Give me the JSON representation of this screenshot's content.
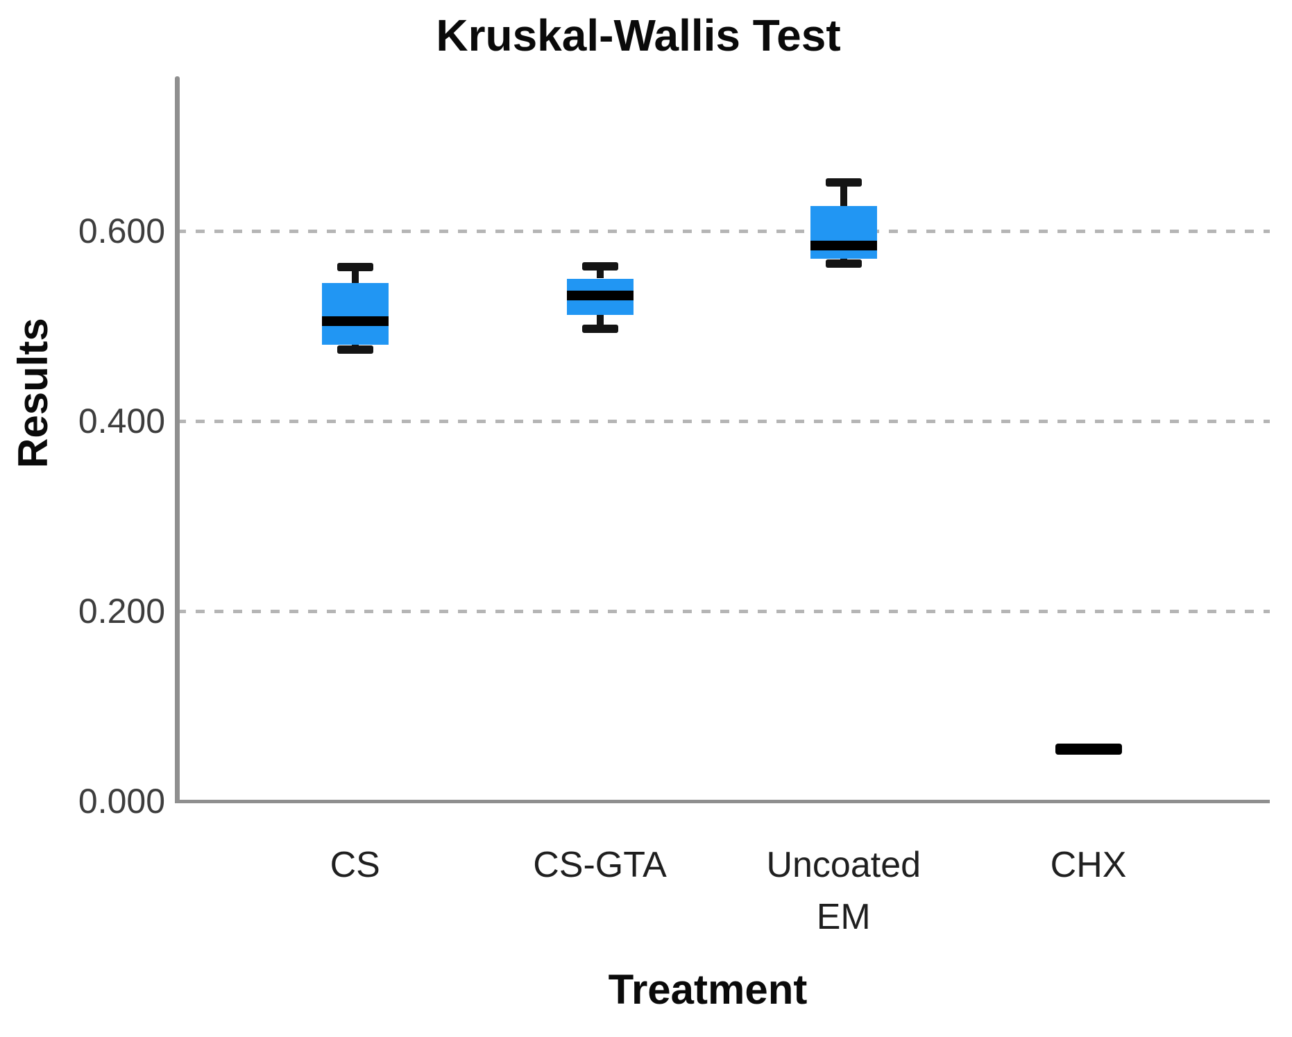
{
  "title": "Kruskal-Wallis Test",
  "chart_data": {
    "type": "boxplot",
    "title": "Kruskal-Wallis Test",
    "xlabel": "Treatment",
    "ylabel": "Results",
    "categories": [
      "CS",
      "CS-GTA",
      "Uncoated EM",
      "CHX"
    ],
    "ylim": [
      0,
      0.76
    ],
    "yticks": [
      0.0,
      0.2,
      0.4,
      0.6
    ],
    "ytick_labels": [
      "0.000",
      "0.200",
      "0.400",
      "0.600"
    ],
    "grid": "horizontal dashed gridlines at 0.200, 0.400, 0.600; none at 0.000 (baseline axis)",
    "legend": "none",
    "series": [
      {
        "name": "CS",
        "min": 0.475,
        "q1": 0.48,
        "median": 0.505,
        "q3": 0.545,
        "max": 0.562
      },
      {
        "name": "CS-GTA",
        "min": 0.497,
        "q1": 0.512,
        "median": 0.532,
        "q3": 0.55,
        "max": 0.563
      },
      {
        "name": "Uncoated EM",
        "min": 0.566,
        "q1": 0.571,
        "median": 0.585,
        "q3": 0.626,
        "max": 0.651
      },
      {
        "name": "CHX",
        "min": 0.055,
        "q1": 0.055,
        "median": 0.055,
        "q3": 0.055,
        "max": 0.055
      }
    ],
    "colors": {
      "box_fill": "#2196F3",
      "median_line": "#000000",
      "whisker": "#141414",
      "gridline": "#b5b5b5",
      "axis_line": "#8f8f8f",
      "tick_label": "#3d3d3d",
      "category_label": "#1f1f1f",
      "title_text": "#0a0a0a",
      "background": "#ffffff"
    }
  }
}
